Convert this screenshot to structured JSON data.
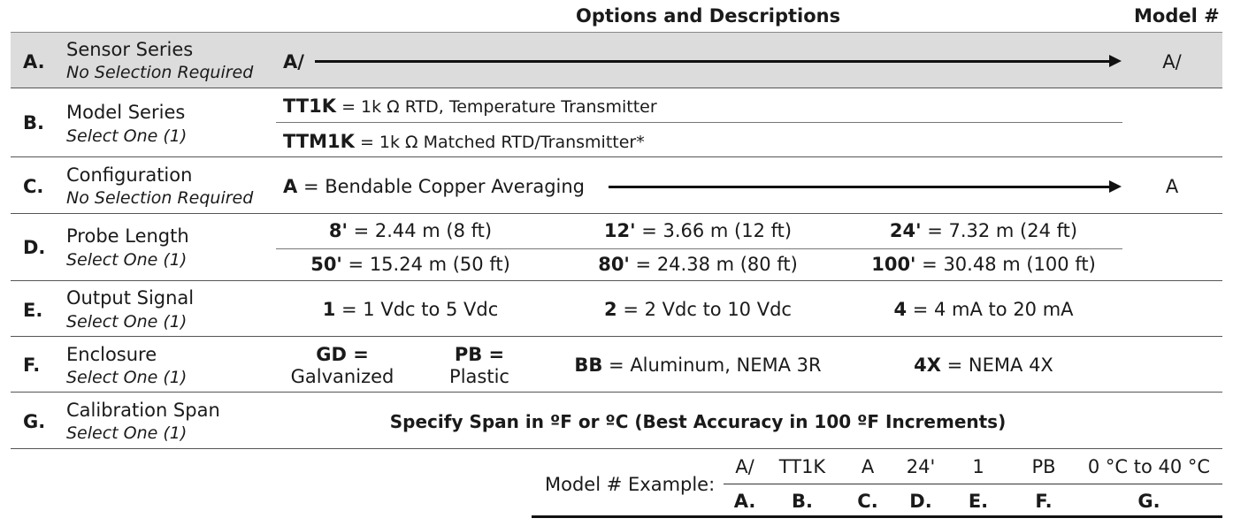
{
  "header": {
    "options_title": "Options and Descriptions",
    "model_title": "Model #"
  },
  "rows": {
    "A": {
      "letter": "A.",
      "title": "Sensor Series",
      "sub": "No Selection Required",
      "option": "A/",
      "model": "A/"
    },
    "B": {
      "letter": "B.",
      "title": "Model Series",
      "sub": "Select One (1)",
      "opt1_code": "TT1K",
      "opt1_desc": " = 1k Ω RTD, Temperature Transmitter",
      "opt2_code": "TTM1K",
      "opt2_desc": " = 1k Ω Matched RTD/Transmitter*"
    },
    "C": {
      "letter": "C.",
      "title": "Configuration",
      "sub": "No Selection Required",
      "opt_code": "A",
      "opt_desc": " = Bendable Copper Averaging",
      "model": "A"
    },
    "D": {
      "letter": "D.",
      "title": "Probe Length",
      "sub": "Select One (1)",
      "options": [
        {
          "code": "8'",
          "desc": " = 2.44 m (8 ft)"
        },
        {
          "code": "12'",
          "desc": " =  3.66 m (12 ft)"
        },
        {
          "code": "24'",
          "desc": " = 7.32 m (24 ft)"
        },
        {
          "code": "50'",
          "desc": " = 15.24 m (50 ft)"
        },
        {
          "code": "80'",
          "desc": " = 24.38 m (80 ft)"
        },
        {
          "code": "100'",
          "desc": " = 30.48 m (100 ft)"
        }
      ]
    },
    "E": {
      "letter": "E.",
      "title": "Output Signal",
      "sub": "Select One (1)",
      "options": [
        {
          "code": "1",
          "desc": " = 1 Vdc to 5 Vdc"
        },
        {
          "code": "2",
          "desc": " = 2 Vdc to 10 Vdc"
        },
        {
          "code": "4",
          "desc": " = 4 mA to 20 mA"
        }
      ]
    },
    "F": {
      "letter": "F.",
      "title": "Enclosure",
      "sub": "Select One (1)",
      "gd_code": "GD =",
      "gd_desc": "Galvanized",
      "pb_code": "PB =",
      "pb_desc": "Plastic",
      "bb_code": "BB",
      "bb_desc": " = Aluminum, NEMA 3R",
      "x4_code": "4X",
      "x4_desc": " = NEMA 4X"
    },
    "G": {
      "letter": "G.",
      "title": "Calibration Span",
      "sub": "Select One (1)",
      "option": "Specify Span in ºF or ºC (Best Accuracy in 100 ºF Increments)"
    }
  },
  "example": {
    "label": "Model # Example:",
    "values": [
      "A/",
      "TT1K",
      "A",
      "24'",
      "1",
      "PB",
      "0 °C to 40 °C"
    ],
    "letters": [
      "A.",
      "B.",
      "C.",
      "D.",
      "E.",
      "F.",
      "G."
    ]
  }
}
